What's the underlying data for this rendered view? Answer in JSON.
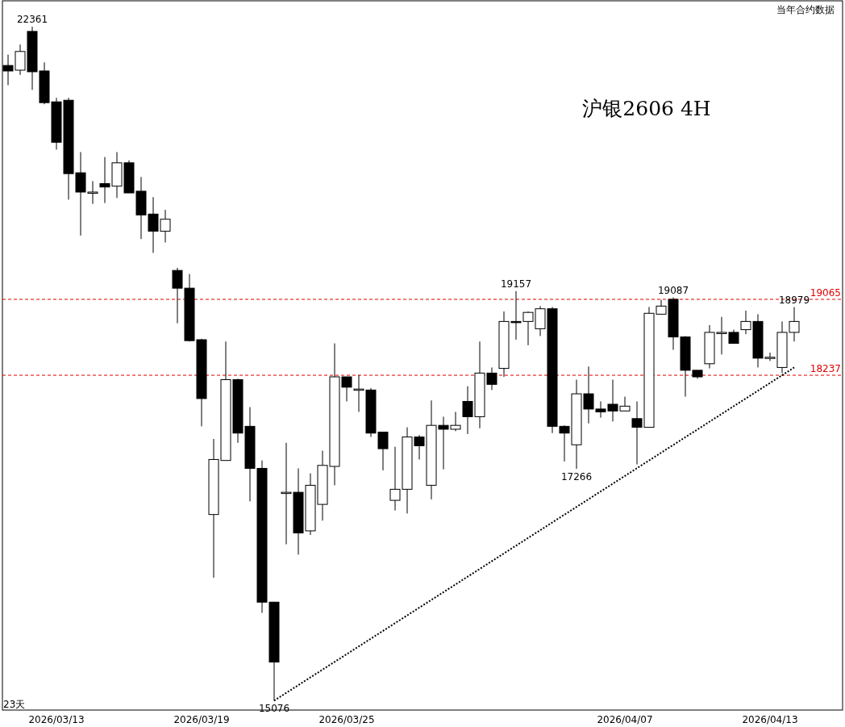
{
  "chart_data": {
    "type": "candlestick",
    "title": "沪银2606 4H",
    "log": true,
    "ylim": [
      14993,
      22703
    ],
    "color": "#000000",
    "categories": [
      null,
      null,
      null,
      null,
      "2026/03/13",
      null,
      null,
      null,
      null,
      null,
      null,
      null,
      null,
      null,
      null,
      null,
      "2026/03/19",
      null,
      null,
      null,
      null,
      null,
      null,
      null,
      null,
      null,
      null,
      null,
      "2026/03/25",
      null,
      null,
      null,
      null,
      null,
      null,
      null,
      null,
      null,
      null,
      null,
      null,
      null,
      null,
      null,
      null,
      null,
      null,
      null,
      null,
      null,
      null,
      "2026/04/07",
      null,
      null,
      null,
      null,
      null,
      null,
      null,
      null,
      null,
      null,
      null,
      "2026/04/13",
      null,
      null
    ],
    "ohlc": [
      [
        21860,
        22000,
        21610,
        21790
      ],
      [
        21800,
        22130,
        21740,
        22040
      ],
      [
        22300,
        22361,
        21550,
        21780
      ],
      [
        21790,
        21900,
        21370,
        21390
      ],
      [
        21400,
        21450,
        20810,
        20900
      ],
      [
        21420,
        21450,
        20210,
        20520
      ],
      [
        20530,
        20780,
        19790,
        20300
      ],
      [
        20300,
        20430,
        20160,
        20300
      ],
      [
        20400,
        20720,
        20170,
        20360
      ],
      [
        20370,
        20780,
        20230,
        20650
      ],
      [
        20650,
        20680,
        20290,
        20290
      ],
      [
        20310,
        20480,
        19750,
        20030
      ],
      [
        20040,
        20240,
        19590,
        19840
      ],
      [
        19840,
        20090,
        19710,
        19980
      ],
      [
        19390,
        19420,
        18800,
        19190
      ],
      [
        19190,
        19350,
        18600,
        18610
      ],
      [
        18620,
        18630,
        17700,
        17990
      ],
      [
        16810,
        17570,
        16200,
        17360
      ],
      [
        17350,
        18600,
        17350,
        18190
      ],
      [
        18190,
        18200,
        17530,
        17630
      ],
      [
        17700,
        17900,
        16940,
        17270
      ],
      [
        17270,
        17350,
        15870,
        15970
      ],
      [
        15970,
        15970,
        15076,
        15420
      ],
      [
        17020,
        17530,
        16520,
        17030
      ],
      [
        17030,
        17270,
        16420,
        16630
      ],
      [
        16650,
        17220,
        16610,
        17100
      ],
      [
        16910,
        17450,
        16750,
        17300
      ],
      [
        17290,
        18580,
        17100,
        18220
      ],
      [
        18220,
        18220,
        17960,
        18110
      ],
      [
        18090,
        18240,
        17850,
        18090
      ],
      [
        18080,
        18100,
        17590,
        17630
      ],
      [
        17640,
        17640,
        17250,
        17470
      ],
      [
        16950,
        17490,
        16850,
        17060
      ],
      [
        17060,
        17690,
        16820,
        17590
      ],
      [
        17590,
        17610,
        17360,
        17500
      ],
      [
        17100,
        17970,
        16960,
        17710
      ],
      [
        17710,
        17800,
        17260,
        17670
      ],
      [
        17670,
        17850,
        17650,
        17710
      ],
      [
        17960,
        18120,
        17620,
        17800
      ],
      [
        17800,
        18600,
        17680,
        18260
      ],
      [
        18260,
        18320,
        18080,
        18140
      ],
      [
        18310,
        18930,
        18220,
        18820
      ],
      [
        18820,
        19157,
        18620,
        18810
      ],
      [
        18820,
        18930,
        18560,
        18920
      ],
      [
        18740,
        18990,
        18660,
        18960
      ],
      [
        18960,
        18980,
        17630,
        17700
      ],
      [
        17700,
        17710,
        17340,
        17630
      ],
      [
        17510,
        18190,
        17266,
        18040
      ],
      [
        18040,
        18330,
        17730,
        17880
      ],
      [
        17880,
        17960,
        17790,
        17850
      ],
      [
        17930,
        18190,
        17750,
        17860
      ],
      [
        17860,
        18010,
        17860,
        17910
      ],
      [
        17780,
        17960,
        17310,
        17690
      ],
      [
        17690,
        18980,
        17690,
        18910
      ],
      [
        18900,
        19060,
        18900,
        18990
      ],
      [
        19065,
        19087,
        18510,
        18650
      ],
      [
        18650,
        18660,
        18010,
        18290
      ],
      [
        18290,
        18290,
        18200,
        18220
      ],
      [
        18360,
        18780,
        18310,
        18700
      ],
      [
        18700,
        18870,
        18460,
        18700
      ],
      [
        18700,
        18730,
        18580,
        18580
      ],
      [
        18730,
        18940,
        18680,
        18820
      ],
      [
        18820,
        18900,
        18320,
        18420
      ],
      [
        18430,
        18480,
        18390,
        18430
      ],
      [
        18320,
        18820,
        18260,
        18700
      ],
      [
        18700,
        18979,
        18600,
        18820
      ]
    ],
    "series": [
      {
        "type": "line",
        "color": "#000000",
        "line_style": "dotted",
        "values": [
          null,
          null,
          null,
          null,
          null,
          null,
          null,
          null,
          null,
          null,
          null,
          null,
          null,
          null,
          null,
          null,
          null,
          null,
          null,
          null,
          null,
          null,
          15076,
          null,
          null,
          null,
          null,
          null,
          null,
          null,
          null,
          null,
          null,
          null,
          null,
          null,
          null,
          null,
          null,
          null,
          null,
          null,
          null,
          null,
          null,
          null,
          null,
          null,
          null,
          null,
          null,
          null,
          null,
          null,
          null,
          null,
          null,
          null,
          null,
          null,
          null,
          null,
          null,
          null,
          null,
          18320
        ]
      }
    ],
    "ref_lines": [
      {
        "axis": "y",
        "value": 19065,
        "label": "19065",
        "color": "#e00000",
        "line_style": "dashed"
      },
      {
        "axis": "y",
        "value": 18237,
        "label": "18237",
        "color": "#e00000",
        "line_style": "dashed"
      }
    ],
    "annotations": [
      "当年合约数据",
      "23天",
      {
        "text": "22361",
        "y": 22361
      },
      {
        "text": "19157",
        "y": 19157
      },
      {
        "text": "19087",
        "y": 19087
      },
      {
        "text": "18979",
        "y": 18979
      },
      {
        "text": "17266",
        "y": 17266
      },
      {
        "text": "15076",
        "y": 15076
      }
    ]
  }
}
